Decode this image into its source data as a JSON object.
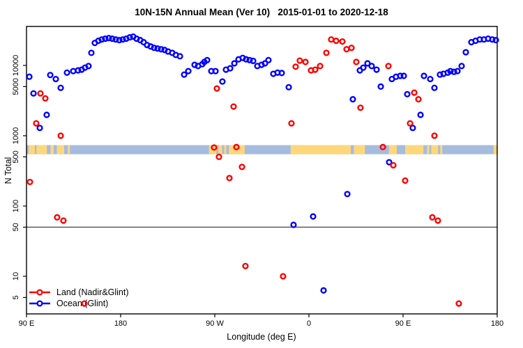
{
  "title": "10N-15N Annual Mean (Ver 10)   2015-01-01 to 2020-12-18",
  "legend": {
    "items": [
      {
        "label": "Land (Nadir&Glint)",
        "color": "#ff0000"
      },
      {
        "label": "Ocean (Glint)",
        "color": "#0000ff"
      }
    ]
  },
  "chart_data": {
    "type": "scatter",
    "title": "10N-15N Annual Mean (Ver 10)   2015-01-01 to 2020-12-18",
    "xlabel": "Longitude (deg E)",
    "ylabel": "N Total",
    "x_axis": {
      "range_deg": [
        -270,
        180
      ],
      "ticks": [
        {
          "lon": -270,
          "label": "90 E"
        },
        {
          "lon": -180,
          "label": "180"
        },
        {
          "lon": -90,
          "label": "90 W"
        },
        {
          "lon": 0,
          "label": "0"
        },
        {
          "lon": 90,
          "label": "90 E"
        },
        {
          "lon": 180,
          "label": "180"
        }
      ]
    },
    "y_axis": {
      "scale": "log10",
      "range": [
        2.7,
        35000
      ],
      "ticks": [
        {
          "value": 5,
          "label": "5"
        },
        {
          "value": 10,
          "label": "10"
        },
        {
          "value": 50,
          "label": "50"
        },
        {
          "value": 100,
          "label": "100"
        },
        {
          "value": 500,
          "label": "500"
        },
        {
          "value": 1000,
          "label": "1000"
        },
        {
          "value": 5000,
          "label": "5000"
        },
        {
          "value": 10000,
          "label": "10000"
        }
      ]
    },
    "reference_line_N": 50,
    "map_band": {
      "ocean_color": "#a6bcde",
      "land_color": "#fdd77a",
      "band_N_range": [
        545,
        735
      ],
      "land_segments_deg": [
        [
          -268,
          -262
        ],
        [
          -260.5,
          -250.5
        ],
        [
          -247,
          -244
        ],
        [
          -241,
          -234
        ],
        [
          -230.5,
          -228.5
        ],
        [
          -95.5,
          -88.5
        ],
        [
          -86.5,
          -83
        ],
        [
          -81,
          -79
        ],
        [
          -76.5,
          -61.5
        ],
        [
          -17.5,
          40
        ],
        [
          43,
          53.5
        ],
        [
          76.5,
          84
        ],
        [
          92,
          109.5
        ],
        [
          113,
          115
        ],
        [
          117,
          123.5
        ],
        [
          125.5,
          127.5
        ],
        [
          176.5,
          180
        ]
      ]
    },
    "series": [
      {
        "name": "Ocean (Glint)",
        "color": "#0000ff",
        "points": [
          [
            -267.3,
            6900
          ],
          [
            -263.3,
            4000
          ],
          [
            -257.3,
            1290
          ],
          [
            -250.7,
            1980
          ],
          [
            -247.3,
            7300
          ],
          [
            -242,
            6400
          ],
          [
            -237.3,
            4800
          ],
          [
            -231.3,
            7900
          ],
          [
            -225.3,
            8300
          ],
          [
            -220.7,
            8500
          ],
          [
            -217.3,
            8700
          ],
          [
            -214,
            9300
          ],
          [
            -210.7,
            9800
          ],
          [
            -208,
            15100
          ],
          [
            -204.7,
            20900
          ],
          [
            -201.3,
            22400
          ],
          [
            -198,
            23400
          ],
          [
            -194.7,
            24000
          ],
          [
            -191.3,
            24500
          ],
          [
            -188,
            24000
          ],
          [
            -184.7,
            23400
          ],
          [
            -181.3,
            22900
          ],
          [
            -178,
            23400
          ],
          [
            -174.7,
            24000
          ],
          [
            -171.3,
            25100
          ],
          [
            -168,
            25700
          ],
          [
            -164.7,
            24000
          ],
          [
            -161.3,
            22900
          ],
          [
            -158,
            21400
          ],
          [
            -154.7,
            19500
          ],
          [
            -151.3,
            18600
          ],
          [
            -148,
            17800
          ],
          [
            -144.7,
            17400
          ],
          [
            -141.3,
            17000
          ],
          [
            -138,
            16600
          ],
          [
            -134.7,
            15800
          ],
          [
            -130.7,
            15100
          ],
          [
            -127.3,
            14100
          ],
          [
            -123.3,
            13500
          ],
          [
            -119.3,
            7400
          ],
          [
            -115.3,
            8300
          ],
          [
            -109.3,
            10200
          ],
          [
            -106,
            9800
          ],
          [
            -102,
            10400
          ],
          [
            -100,
            11200
          ],
          [
            -97.3,
            11900
          ],
          [
            -93.3,
            8300
          ],
          [
            -89.3,
            8300
          ],
          [
            -82.7,
            5900
          ],
          [
            -79.3,
            8700
          ],
          [
            -75.3,
            9100
          ],
          [
            -71.3,
            10700
          ],
          [
            -67.3,
            12200
          ],
          [
            -63.3,
            12800
          ],
          [
            -60,
            12200
          ],
          [
            -56.7,
            11900
          ],
          [
            -53.3,
            11600
          ],
          [
            -49.3,
            9800
          ],
          [
            -45.3,
            10200
          ],
          [
            -42,
            10700
          ],
          [
            -38.7,
            11900
          ],
          [
            -34,
            7600
          ],
          [
            -30,
            7900
          ],
          [
            -26,
            7800
          ],
          [
            -19.3,
            4900
          ],
          [
            -14.7,
            54
          ],
          [
            4,
            71
          ],
          [
            14,
            6.3
          ],
          [
            36.7,
            148
          ],
          [
            42,
            3300
          ],
          [
            48.7,
            8500
          ],
          [
            52,
            9300
          ],
          [
            56,
            10700
          ],
          [
            60,
            9800
          ],
          [
            64.7,
            8700
          ],
          [
            68.7,
            5000
          ],
          [
            76.7,
            420
          ],
          [
            79.3,
            6400
          ],
          [
            83.3,
            6900
          ],
          [
            87.3,
            7100
          ],
          [
            90.7,
            7100
          ],
          [
            94,
            3900
          ],
          [
            99.3,
            1290
          ],
          [
            106.7,
            1980
          ],
          [
            110,
            7100
          ],
          [
            116,
            6400
          ],
          [
            120,
            4800
          ],
          [
            125.3,
            7400
          ],
          [
            128.7,
            7600
          ],
          [
            132.7,
            7900
          ],
          [
            135.3,
            8300
          ],
          [
            138.7,
            8100
          ],
          [
            142,
            8300
          ],
          [
            146,
            9800
          ],
          [
            150,
            15400
          ],
          [
            155.3,
            21400
          ],
          [
            159.3,
            22400
          ],
          [
            163.3,
            23400
          ],
          [
            167.3,
            23400
          ],
          [
            171.3,
            24000
          ],
          [
            175.3,
            23400
          ],
          [
            178.7,
            22900
          ]
        ]
      },
      {
        "name": "Land (Nadir&Glint)",
        "color": "#ff0000",
        "points": [
          [
            -266.7,
            220
          ],
          [
            -260.7,
            1500
          ],
          [
            -256.7,
            4000
          ],
          [
            -252,
            3400
          ],
          [
            -240.7,
            69
          ],
          [
            -237.3,
            1000
          ],
          [
            -234.7,
            62
          ],
          [
            -214.7,
            4.1
          ],
          [
            -90.7,
            680
          ],
          [
            -88,
            4700
          ],
          [
            -86,
            500
          ],
          [
            -76,
            250
          ],
          [
            -72,
            2600
          ],
          [
            -69.3,
            690
          ],
          [
            -64,
            360
          ],
          [
            -60.7,
            14
          ],
          [
            -24.7,
            10
          ],
          [
            -16.7,
            1500
          ],
          [
            -12.7,
            9600
          ],
          [
            -8.7,
            11700
          ],
          [
            -3.3,
            11200
          ],
          [
            2,
            8500
          ],
          [
            6,
            8700
          ],
          [
            10.7,
            9800
          ],
          [
            16.7,
            15100
          ],
          [
            21.3,
            23400
          ],
          [
            26,
            22400
          ],
          [
            32,
            21900
          ],
          [
            36,
            17000
          ],
          [
            40.7,
            17800
          ],
          [
            45.3,
            11200
          ],
          [
            49.3,
            2500
          ],
          [
            70.7,
            690
          ],
          [
            76,
            9800
          ],
          [
            80.7,
            380
          ],
          [
            92,
            230
          ],
          [
            96.7,
            1500
          ],
          [
            100.7,
            4100
          ],
          [
            104.7,
            3300
          ],
          [
            118,
            69
          ],
          [
            120,
            1000
          ],
          [
            123.3,
            62
          ],
          [
            143.3,
            4.1
          ]
        ]
      }
    ]
  }
}
